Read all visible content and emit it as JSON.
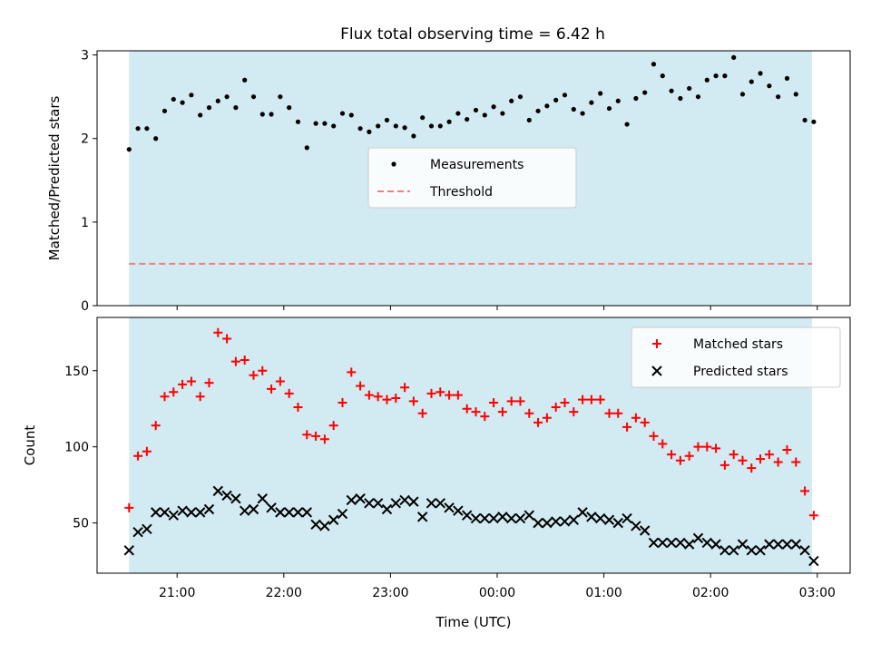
{
  "title": "Flux total observing time = 6.42 h",
  "chart_data": [
    {
      "type": "scatter",
      "title": "Flux total observing time = 6.42 h",
      "xlabel": "",
      "ylabel": "Matched/Predicted stars",
      "ylim": [
        0,
        3.05
      ],
      "yticks": [
        "0",
        "1",
        "2",
        "3"
      ],
      "xticks": [
        "21:00",
        "22:00",
        "23:00",
        "00:00",
        "01:00",
        "02:00",
        "03:00"
      ],
      "shaded_interval": [
        "20:33",
        "02:57"
      ],
      "shade_color": "#add8e6",
      "legend_position": "center",
      "series": [
        {
          "name": "Measurements",
          "marker": "dot",
          "color": "#000000",
          "x": [
            "20:33",
            "20:38",
            "20:43",
            "20:48",
            "20:53",
            "20:58",
            "21:03",
            "21:08",
            "21:13",
            "21:18",
            "21:23",
            "21:28",
            "21:33",
            "21:38",
            "21:43",
            "21:48",
            "21:53",
            "21:58",
            "22:03",
            "22:08",
            "22:13",
            "22:18",
            "22:23",
            "22:28",
            "22:33",
            "22:38",
            "22:43",
            "22:48",
            "22:53",
            "22:58",
            "23:03",
            "23:08",
            "23:13",
            "23:18",
            "23:23",
            "23:28",
            "23:33",
            "23:38",
            "23:43",
            "23:48",
            "23:53",
            "23:58",
            "00:03",
            "00:08",
            "00:13",
            "00:18",
            "00:23",
            "00:28",
            "00:33",
            "00:38",
            "00:43",
            "00:48",
            "00:53",
            "00:58",
            "01:03",
            "01:08",
            "01:13",
            "01:18",
            "01:23",
            "01:28",
            "01:33",
            "01:38",
            "01:43",
            "01:48",
            "01:53",
            "01:58",
            "02:03",
            "02:08",
            "02:13",
            "02:18",
            "02:23",
            "02:28",
            "02:33",
            "02:38",
            "02:43",
            "02:48",
            "02:53",
            "02:58"
          ],
          "y": [
            1.87,
            2.12,
            2.12,
            2.0,
            2.33,
            2.47,
            2.43,
            2.52,
            2.28,
            2.37,
            2.45,
            2.5,
            2.37,
            2.7,
            2.5,
            2.29,
            2.29,
            2.5,
            2.37,
            2.2,
            1.89,
            2.18,
            2.18,
            2.15,
            2.3,
            2.28,
            2.12,
            2.08,
            2.15,
            2.22,
            2.15,
            2.13,
            2.03,
            2.25,
            2.15,
            2.15,
            2.2,
            2.3,
            2.23,
            2.34,
            2.28,
            2.38,
            2.3,
            2.45,
            2.5,
            2.22,
            2.33,
            2.39,
            2.46,
            2.52,
            2.35,
            2.3,
            2.43,
            2.54,
            2.36,
            2.45,
            2.17,
            2.48,
            2.55,
            2.89,
            2.75,
            2.57,
            2.48,
            2.6,
            2.5,
            2.7,
            2.75,
            2.75,
            2.97,
            2.53,
            2.68,
            2.78,
            2.63,
            2.5,
            2.72,
            2.53,
            2.22,
            2.2
          ]
        },
        {
          "name": "Threshold",
          "marker": "dashed-line",
          "color": "#f08080",
          "x": [
            "20:33",
            "02:57"
          ],
          "y": [
            0.5,
            0.5
          ]
        }
      ]
    },
    {
      "type": "scatter",
      "title": "",
      "xlabel": "Time (UTC)",
      "ylabel": "Count",
      "ylim": [
        17,
        185
      ],
      "yticks": [
        "50",
        "100",
        "150"
      ],
      "xticks": [
        "21:00",
        "22:00",
        "23:00",
        "00:00",
        "01:00",
        "02:00",
        "03:00"
      ],
      "shaded_interval": [
        "20:33",
        "02:57"
      ],
      "shade_color": "#add8e6",
      "legend_position": "upper right",
      "series": [
        {
          "name": "Matched stars",
          "marker": "plus",
          "color": "#ff0000",
          "x": [
            "20:33",
            "20:38",
            "20:43",
            "20:48",
            "20:53",
            "20:58",
            "21:03",
            "21:08",
            "21:13",
            "21:18",
            "21:23",
            "21:28",
            "21:33",
            "21:38",
            "21:43",
            "21:48",
            "21:53",
            "21:58",
            "22:03",
            "22:08",
            "22:13",
            "22:18",
            "22:23",
            "22:28",
            "22:33",
            "22:38",
            "22:43",
            "22:48",
            "22:53",
            "22:58",
            "23:03",
            "23:08",
            "23:13",
            "23:18",
            "23:23",
            "23:28",
            "23:33",
            "23:38",
            "23:43",
            "23:48",
            "23:53",
            "23:58",
            "00:03",
            "00:08",
            "00:13",
            "00:18",
            "00:23",
            "00:28",
            "00:33",
            "00:38",
            "00:43",
            "00:48",
            "00:53",
            "00:58",
            "01:03",
            "01:08",
            "01:13",
            "01:18",
            "01:23",
            "01:28",
            "01:33",
            "01:38",
            "01:43",
            "01:48",
            "01:53",
            "01:58",
            "02:03",
            "02:08",
            "02:13",
            "02:18",
            "02:23",
            "02:28",
            "02:33",
            "02:38",
            "02:43",
            "02:48",
            "02:53",
            "02:58"
          ],
          "y": [
            60,
            94,
            97,
            114,
            133,
            136,
            141,
            143,
            133,
            142,
            175,
            171,
            156,
            157,
            147,
            150,
            138,
            143,
            135,
            126,
            108,
            107,
            105,
            114,
            129,
            149,
            140,
            134,
            133,
            131,
            132,
            139,
            130,
            122,
            135,
            136,
            134,
            134,
            125,
            123,
            120,
            129,
            123,
            130,
            130,
            122,
            116,
            119,
            126,
            129,
            123,
            131,
            131,
            131,
            122,
            122,
            113,
            119,
            116,
            107,
            102,
            95,
            91,
            94,
            100,
            100,
            99,
            88,
            95,
            91,
            86,
            92,
            95,
            90,
            98,
            90,
            71,
            55
          ]
        },
        {
          "name": "Predicted stars",
          "marker": "x",
          "color": "#000000",
          "x": [
            "20:33",
            "20:38",
            "20:43",
            "20:48",
            "20:53",
            "20:58",
            "21:03",
            "21:08",
            "21:13",
            "21:18",
            "21:23",
            "21:28",
            "21:33",
            "21:38",
            "21:43",
            "21:48",
            "21:53",
            "21:58",
            "22:03",
            "22:08",
            "22:13",
            "22:18",
            "22:23",
            "22:28",
            "22:33",
            "22:38",
            "22:43",
            "22:48",
            "22:53",
            "22:58",
            "23:03",
            "23:08",
            "23:13",
            "23:18",
            "23:23",
            "23:28",
            "23:33",
            "23:38",
            "23:43",
            "23:48",
            "23:53",
            "23:58",
            "00:03",
            "00:08",
            "00:13",
            "00:18",
            "00:23",
            "00:28",
            "00:33",
            "00:38",
            "00:43",
            "00:48",
            "00:53",
            "00:58",
            "01:03",
            "01:08",
            "01:13",
            "01:18",
            "01:23",
            "01:28",
            "01:33",
            "01:38",
            "01:43",
            "01:48",
            "01:53",
            "01:58",
            "02:03",
            "02:08",
            "02:13",
            "02:18",
            "02:23",
            "02:28",
            "02:33",
            "02:38",
            "02:43",
            "02:48",
            "02:53",
            "02:58"
          ],
          "y": [
            32,
            44,
            46,
            57,
            57,
            55,
            58,
            57,
            57,
            59,
            71,
            68,
            66,
            58,
            59,
            66,
            60,
            57,
            57,
            57,
            57,
            49,
            48,
            52,
            56,
            65,
            66,
            63,
            63,
            59,
            63,
            65,
            64,
            54,
            63,
            63,
            60,
            58,
            55,
            53,
            53,
            53,
            54,
            53,
            53,
            55,
            50,
            50,
            51,
            51,
            52,
            57,
            54,
            53,
            52,
            50,
            53,
            48,
            45,
            37,
            37,
            37,
            37,
            36,
            40,
            37,
            36,
            32,
            32,
            36,
            32,
            32,
            36,
            36,
            36,
            36,
            32,
            25
          ]
        }
      ]
    }
  ]
}
